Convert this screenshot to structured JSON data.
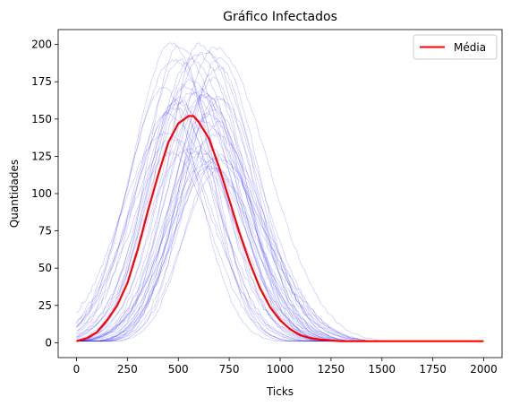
{
  "chart_data": {
    "type": "line",
    "title": "Gráfico Infectados",
    "xlabel": "Ticks",
    "ylabel": "Quantidades",
    "xlim": [
      -90,
      2090
    ],
    "ylim": [
      -10,
      210
    ],
    "xticks": [
      0,
      250,
      500,
      750,
      1000,
      1250,
      1500,
      1750,
      2000
    ],
    "yticks": [
      0,
      25,
      50,
      75,
      100,
      125,
      150,
      175,
      200
    ],
    "grid": false,
    "legend": {
      "placement": "top-right",
      "entries": [
        "Média"
      ]
    },
    "colors": {
      "mean": "#ff0000",
      "runs": "#0000ff"
    },
    "series": [
      {
        "name": "Média",
        "x": [
          0,
          50,
          100,
          150,
          200,
          250,
          300,
          350,
          400,
          450,
          500,
          550,
          575,
          600,
          650,
          700,
          750,
          800,
          850,
          900,
          950,
          1000,
          1050,
          1100,
          1150,
          1200,
          1250,
          1300,
          1400,
          1500,
          1750,
          2000
        ],
        "values": [
          1,
          3,
          7,
          15,
          25,
          40,
          62,
          88,
          112,
          134,
          147,
          152,
          152,
          148,
          137,
          118,
          96,
          74,
          54,
          37,
          24,
          15,
          9,
          5,
          3,
          2,
          1.5,
          1,
          1,
          1,
          1,
          1
        ]
      }
    ]
  }
}
